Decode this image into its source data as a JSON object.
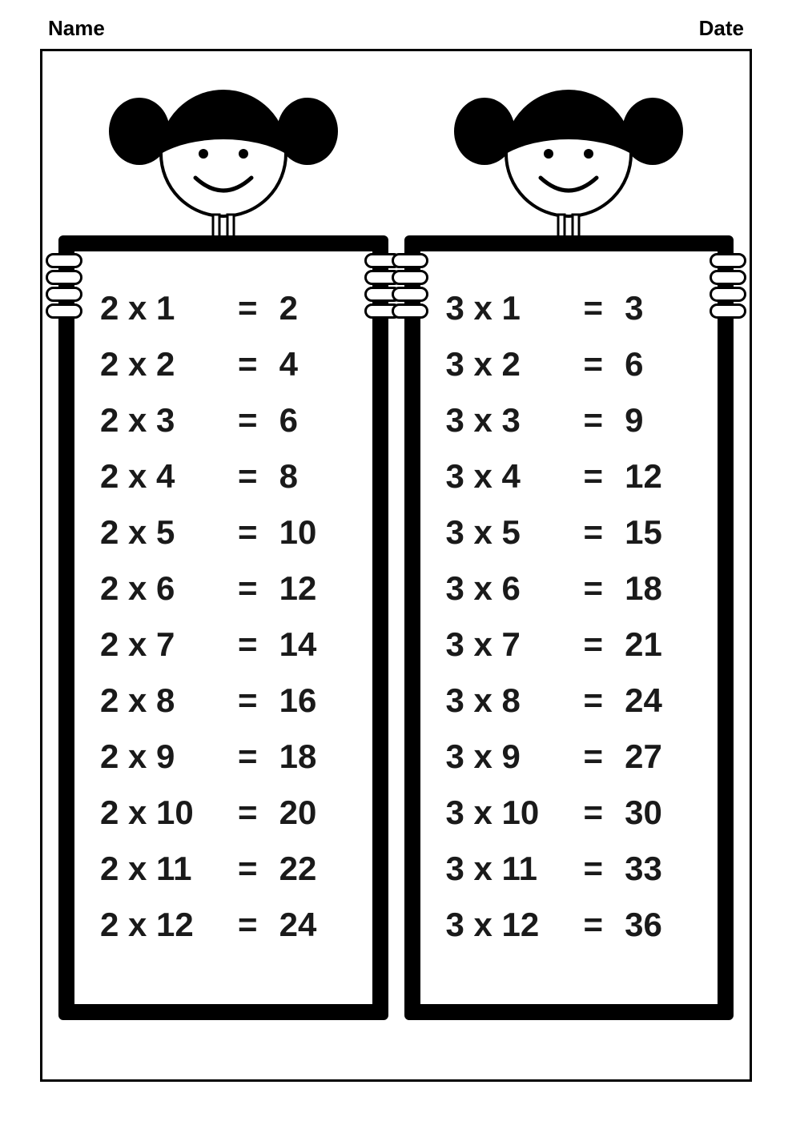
{
  "header": {
    "name_label": "Name",
    "date_label": "Date"
  },
  "colors": {
    "border": "#000000",
    "background": "#ffffff",
    "text": "#1a1a1a"
  },
  "fontsize": {
    "header": 26,
    "equation": 42
  },
  "tables": [
    {
      "multiplier": 2,
      "rows": [
        {
          "a": 2,
          "b": 1,
          "r": 2
        },
        {
          "a": 2,
          "b": 2,
          "r": 4
        },
        {
          "a": 2,
          "b": 3,
          "r": 6
        },
        {
          "a": 2,
          "b": 4,
          "r": 8
        },
        {
          "a": 2,
          "b": 5,
          "r": 10
        },
        {
          "a": 2,
          "b": 6,
          "r": 12
        },
        {
          "a": 2,
          "b": 7,
          "r": 14
        },
        {
          "a": 2,
          "b": 8,
          "r": 16
        },
        {
          "a": 2,
          "b": 9,
          "r": 18
        },
        {
          "a": 2,
          "b": 10,
          "r": 20
        },
        {
          "a": 2,
          "b": 11,
          "r": 22
        },
        {
          "a": 2,
          "b": 12,
          "r": 24
        }
      ]
    },
    {
      "multiplier": 3,
      "rows": [
        {
          "a": 3,
          "b": 1,
          "r": 3
        },
        {
          "a": 3,
          "b": 2,
          "r": 6
        },
        {
          "a": 3,
          "b": 3,
          "r": 9
        },
        {
          "a": 3,
          "b": 4,
          "r": 12
        },
        {
          "a": 3,
          "b": 5,
          "r": 15
        },
        {
          "a": 3,
          "b": 6,
          "r": 18
        },
        {
          "a": 3,
          "b": 7,
          "r": 21
        },
        {
          "a": 3,
          "b": 8,
          "r": 24
        },
        {
          "a": 3,
          "b": 9,
          "r": 27
        },
        {
          "a": 3,
          "b": 10,
          "r": 30
        },
        {
          "a": 3,
          "b": 11,
          "r": 33
        },
        {
          "a": 3,
          "b": 12,
          "r": 36
        }
      ]
    }
  ]
}
